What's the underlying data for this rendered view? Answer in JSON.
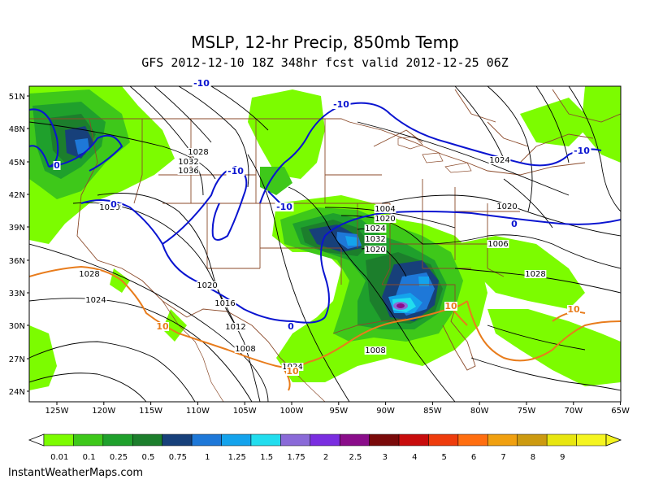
{
  "title": "MSLP, 12-hr Precip, 850mb Temp",
  "subtitle": "GFS 2012-12-10 18Z 348hr fcst valid 2012-12-25 06Z",
  "credit": "InstantWeatherMaps.com",
  "lat_labels": [
    "51N",
    "48N",
    "45N",
    "42N",
    "39N",
    "36N",
    "33N",
    "30N",
    "27N",
    "24N"
  ],
  "lon_labels": [
    "125W",
    "120W",
    "115W",
    "110W",
    "105W",
    "100W",
    "95W",
    "90W",
    "85W",
    "80W",
    "75W",
    "70W",
    "65W"
  ],
  "colorbar": {
    "labels": [
      "0.01",
      "0.1",
      "0.25",
      "0.5",
      "0.75",
      "1",
      "1.25",
      "1.5",
      "1.75",
      "2",
      "2.5",
      "3",
      "4",
      "5",
      "6",
      "7",
      "8",
      "9"
    ],
    "colors": [
      "#7cfc00",
      "#3ec81a",
      "#1fa02c",
      "#1c7e2c",
      "#17407a",
      "#1e78d8",
      "#14a3ec",
      "#22ddee",
      "#8a6ad8",
      "#7a2ee0",
      "#8a0d8a",
      "#7a0a0a",
      "#c80c0c",
      "#ee3c0c",
      "#ff6e10",
      "#f0a010",
      "#cc9a10",
      "#e8e610",
      "#f5f520"
    ]
  },
  "isobars": [
    "1028",
    "1032",
    "1036",
    "1032",
    "1028",
    "1024",
    "1020",
    "1016",
    "1012",
    "1008",
    "1004",
    "1020",
    "1024",
    "1032",
    "1020",
    "1024",
    "1020",
    "1006",
    "1028",
    "1008",
    "1024",
    "1020"
  ],
  "temp_labels": {
    "blue": [
      "-10",
      "-10",
      "-10",
      "-10",
      "0",
      "0",
      "0",
      "0",
      "-10"
    ],
    "orange": [
      "10",
      "10",
      "10",
      "10",
      "10"
    ]
  }
}
